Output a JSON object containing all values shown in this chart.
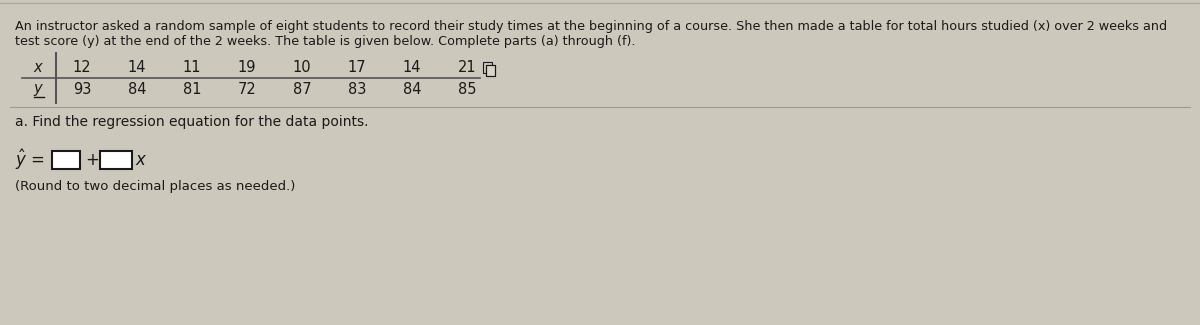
{
  "background_color": "#ccc8bc",
  "panel_color": "#d8d4c8",
  "title_text_line1": "An instructor asked a random sample of eight students to record their study times at the beginning of a course. She then made a table for total hours studied (x) over 2 weeks and",
  "title_text_line2": "test score (y) at the end of the 2 weeks. The table is given below. Complete parts (a) through (f).",
  "x_label": "x",
  "y_label": "y",
  "x_values": [
    "12",
    "14",
    "11",
    "19",
    "10",
    "17",
    "14",
    "21"
  ],
  "y_values": [
    "93",
    "84",
    "81",
    "72",
    "87",
    "83",
    "84",
    "85"
  ],
  "part_a_text": "a. Find the regression equation for the data points.",
  "round_note": "(Round to two decimal places as needed.)",
  "font_size_title": 9.2,
  "font_size_table": 10.5,
  "font_size_part": 10,
  "font_size_eq": 11,
  "text_color": "#1a1a1a",
  "line_color": "#888888",
  "table_line_color": "#555555"
}
